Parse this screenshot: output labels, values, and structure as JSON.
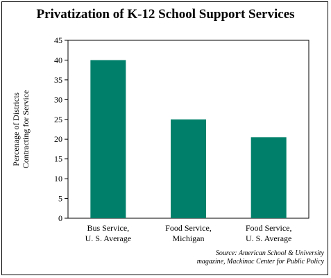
{
  "chart_data": {
    "type": "bar",
    "title": "Privatization of K-12 School Support Services",
    "ylabel_lines": [
      "Percenage of Districts",
      "Contracting for Service"
    ],
    "xlabel": "",
    "ylim": [
      0,
      45
    ],
    "yticks": [
      0,
      5,
      10,
      15,
      20,
      25,
      30,
      35,
      40,
      45
    ],
    "grid": false,
    "categories": [
      [
        "Bus Service,",
        "U. S. Average"
      ],
      [
        "Food Service,",
        "Michigan"
      ],
      [
        "Food Service,",
        "U. S. Average"
      ]
    ],
    "values": [
      40,
      25,
      20.5
    ],
    "bar_color": "#00806a",
    "source_label": "Source:",
    "source_line1": "American School & University",
    "source_line2": "magazine, Mackinac Center for Public Policy"
  }
}
